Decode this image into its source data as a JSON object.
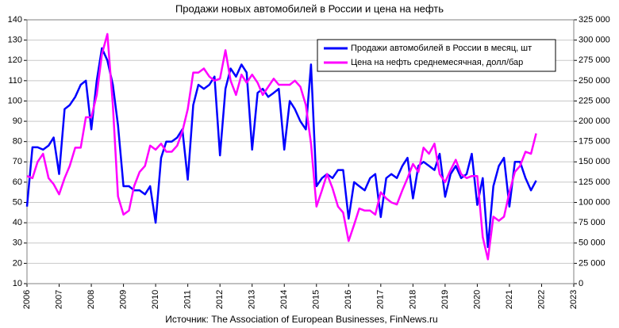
{
  "chart_data": {
    "type": "line",
    "title": "Продажи новых автомобилей в России и цена на нефть",
    "source": "Источник: The Association of European Businesses, FinNews.ru",
    "grid": true,
    "legend": "upper right",
    "xlim": [
      2006,
      2023
    ],
    "xticks": [
      2006,
      2007,
      2008,
      2009,
      2010,
      2011,
      2012,
      2013,
      2014,
      2015,
      2016,
      2017,
      2018,
      2019,
      2020,
      2021,
      2022,
      2023
    ],
    "ylim": [
      10,
      140
    ],
    "yticks": [
      10,
      20,
      30,
      40,
      50,
      60,
      70,
      80,
      90,
      100,
      110,
      120,
      130,
      140
    ],
    "y2lim": [
      0,
      325000
    ],
    "y2ticks": [
      0,
      {
        "value": 25000,
        "label": "25 000"
      },
      {
        "value": 50000,
        "label": "50 000"
      },
      {
        "value": 75000,
        "label": "75 000"
      },
      {
        "value": 100000,
        "label": "100 000"
      },
      {
        "value": 125000,
        "label": "125 000"
      },
      {
        "value": 150000,
        "label": "150 000"
      },
      {
        "value": 175000,
        "label": "175 000"
      },
      {
        "value": 200000,
        "label": "200 000"
      },
      {
        "value": 225000,
        "label": "225 000"
      },
      {
        "value": 250000,
        "label": "250 000"
      },
      {
        "value": 275000,
        "label": "275 000"
      },
      {
        "value": 300000,
        "label": "300 000"
      },
      {
        "value": 325000,
        "label": "325 000"
      }
    ],
    "x": [
      2006,
      2006.17,
      2006.33,
      2006.5,
      2006.67,
      2006.83,
      2007,
      2007.17,
      2007.33,
      2007.5,
      2007.67,
      2007.83,
      2008,
      2008.17,
      2008.33,
      2008.5,
      2008.67,
      2008.83,
      2009,
      2009.17,
      2009.33,
      2009.5,
      2009.67,
      2009.83,
      2010,
      2010.17,
      2010.33,
      2010.5,
      2010.67,
      2010.83,
      2011,
      2011.17,
      2011.33,
      2011.5,
      2011.67,
      2011.83,
      2012,
      2012.17,
      2012.33,
      2012.5,
      2012.67,
      2012.83,
      2013,
      2013.17,
      2013.33,
      2013.5,
      2013.67,
      2013.83,
      2014,
      2014.17,
      2014.33,
      2014.5,
      2014.67,
      2014.83,
      2015,
      2015.17,
      2015.33,
      2015.5,
      2015.67,
      2015.83,
      2016,
      2016.17,
      2016.33,
      2016.5,
      2016.67,
      2016.83,
      2017,
      2017.17,
      2017.33,
      2017.5,
      2017.67,
      2017.83,
      2018,
      2018.17,
      2018.33,
      2018.5,
      2018.67,
      2018.83,
      2019,
      2019.17,
      2019.33,
      2019.5,
      2019.67,
      2019.83,
      2020,
      2020.17,
      2020.33,
      2020.5,
      2020.67,
      2020.83,
      2021,
      2021.17,
      2021.33,
      2021.5,
      2021.67,
      2021.83
    ],
    "series": [
      {
        "name": "Продажи  автомобилей в России в месяц, шт",
        "color": "#0000ff",
        "axis": "y2",
        "values": [
          95000,
          168000,
          168000,
          165000,
          170000,
          180000,
          135000,
          215000,
          220000,
          230000,
          245000,
          250000,
          190000,
          250000,
          290000,
          275000,
          245000,
          195000,
          120000,
          120000,
          115000,
          115000,
          110000,
          120000,
          75000,
          155000,
          175000,
          175000,
          180000,
          190000,
          128000,
          220000,
          245000,
          240000,
          245000,
          255000,
          158000,
          240000,
          265000,
          255000,
          270000,
          260000,
          165000,
          235000,
          240000,
          230000,
          235000,
          240000,
          165000,
          225000,
          215000,
          200000,
          190000,
          270000,
          120000,
          130000,
          135000,
          130000,
          140000,
          140000,
          80000,
          125000,
          120000,
          115000,
          130000,
          135000,
          82000,
          130000,
          135000,
          130000,
          145000,
          155000,
          105000,
          145000,
          150000,
          145000,
          140000,
          160000,
          107000,
          135000,
          145000,
          130000,
          135000,
          160000,
          97000,
          130000,
          45000,
          120000,
          145000,
          155000,
          95000,
          150000,
          150000,
          130000,
          115000,
          127000
        ]
      },
      {
        "name": "Цена на нефть среднемесячная, долл/бар",
        "color": "#ff00ff",
        "axis": "y",
        "values": [
          63,
          62,
          70,
          74,
          62,
          59,
          54,
          62,
          68,
          77,
          77,
          92,
          92,
          103,
          123,
          133,
          98,
          53,
          44,
          46,
          58,
          65,
          68,
          78,
          76,
          79,
          75,
          75,
          78,
          85,
          96,
          114,
          114,
          116,
          112,
          110,
          111,
          125,
          110,
          103,
          113,
          109,
          113,
          109,
          103,
          107,
          111,
          108,
          108,
          108,
          110,
          107,
          98,
          79,
          48,
          56,
          64,
          57,
          48,
          45,
          31,
          39,
          47,
          46,
          46,
          44,
          55,
          52,
          50,
          49,
          56,
          62,
          69,
          65,
          77,
          74,
          79,
          64,
          60,
          66,
          71,
          64,
          62,
          63,
          63,
          33,
          22,
          43,
          41,
          43,
          55,
          65,
          68,
          75,
          74,
          84
        ]
      }
    ]
  }
}
